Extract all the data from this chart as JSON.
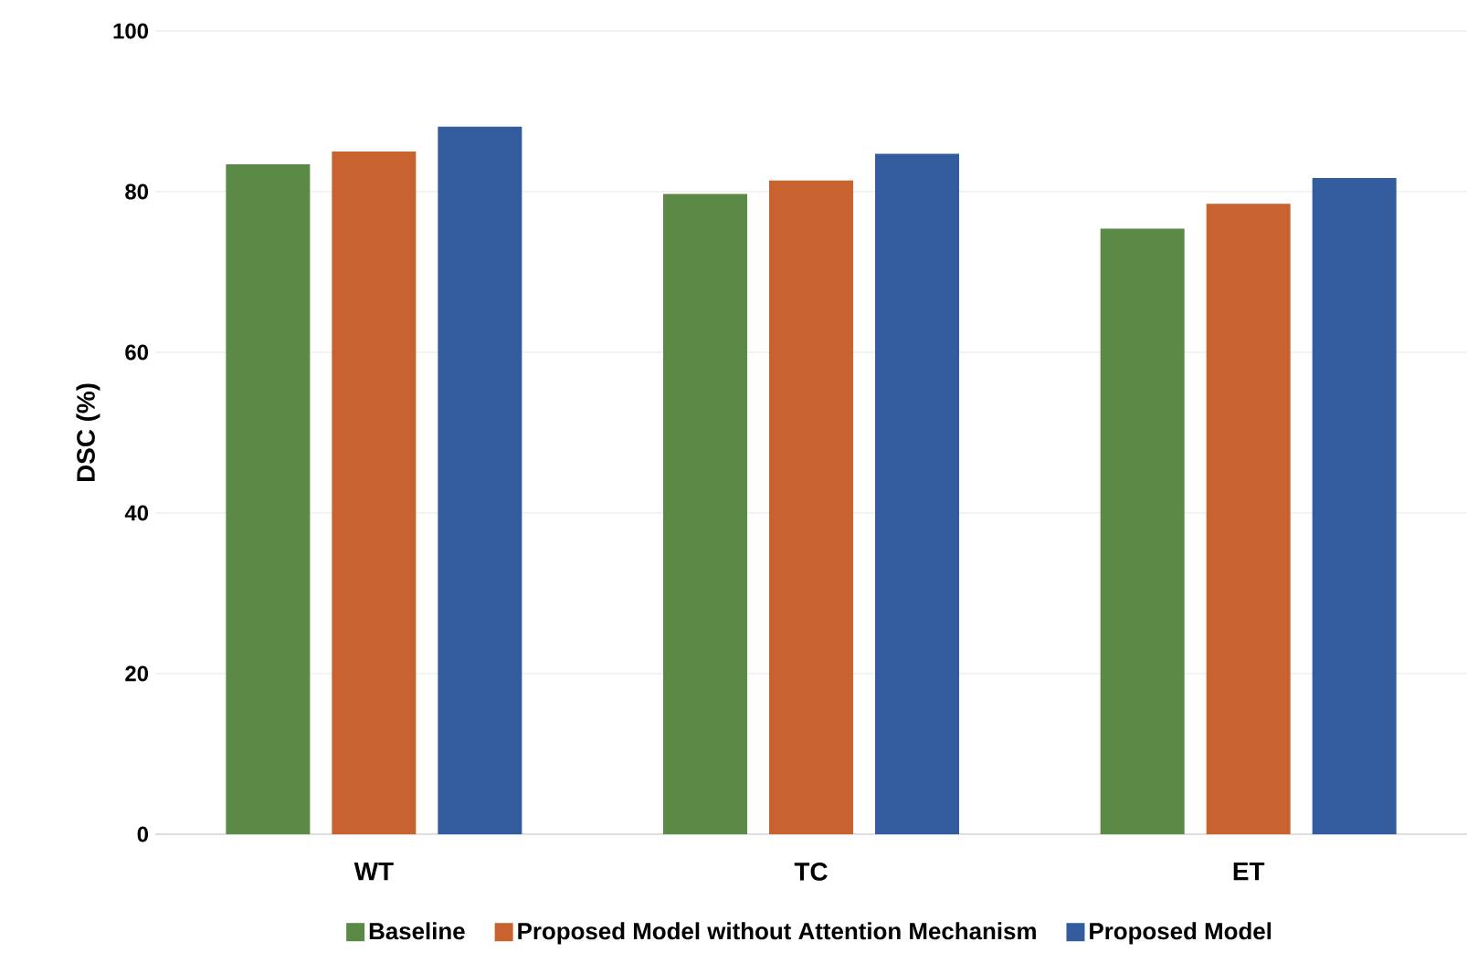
{
  "chart_data": {
    "type": "bar",
    "ylabel": "DSC (%)",
    "categories": [
      "WT",
      "TC",
      "ET"
    ],
    "series": [
      {
        "name": "Baseline",
        "color": "#5a8a45",
        "values": [
          83.4,
          79.7,
          75.4
        ]
      },
      {
        "name": "Proposed Model without Attention Mechanism",
        "color": "#c8622f",
        "values": [
          85.0,
          81.4,
          78.5
        ]
      },
      {
        "name": "Proposed Model",
        "color": "#335c9e",
        "values": [
          88.1,
          84.7,
          81.7
        ]
      }
    ],
    "ylim": [
      0,
      100
    ],
    "yticks": [
      0,
      20,
      40,
      60,
      80,
      100
    ],
    "grid": "y",
    "legend": "bottom"
  }
}
